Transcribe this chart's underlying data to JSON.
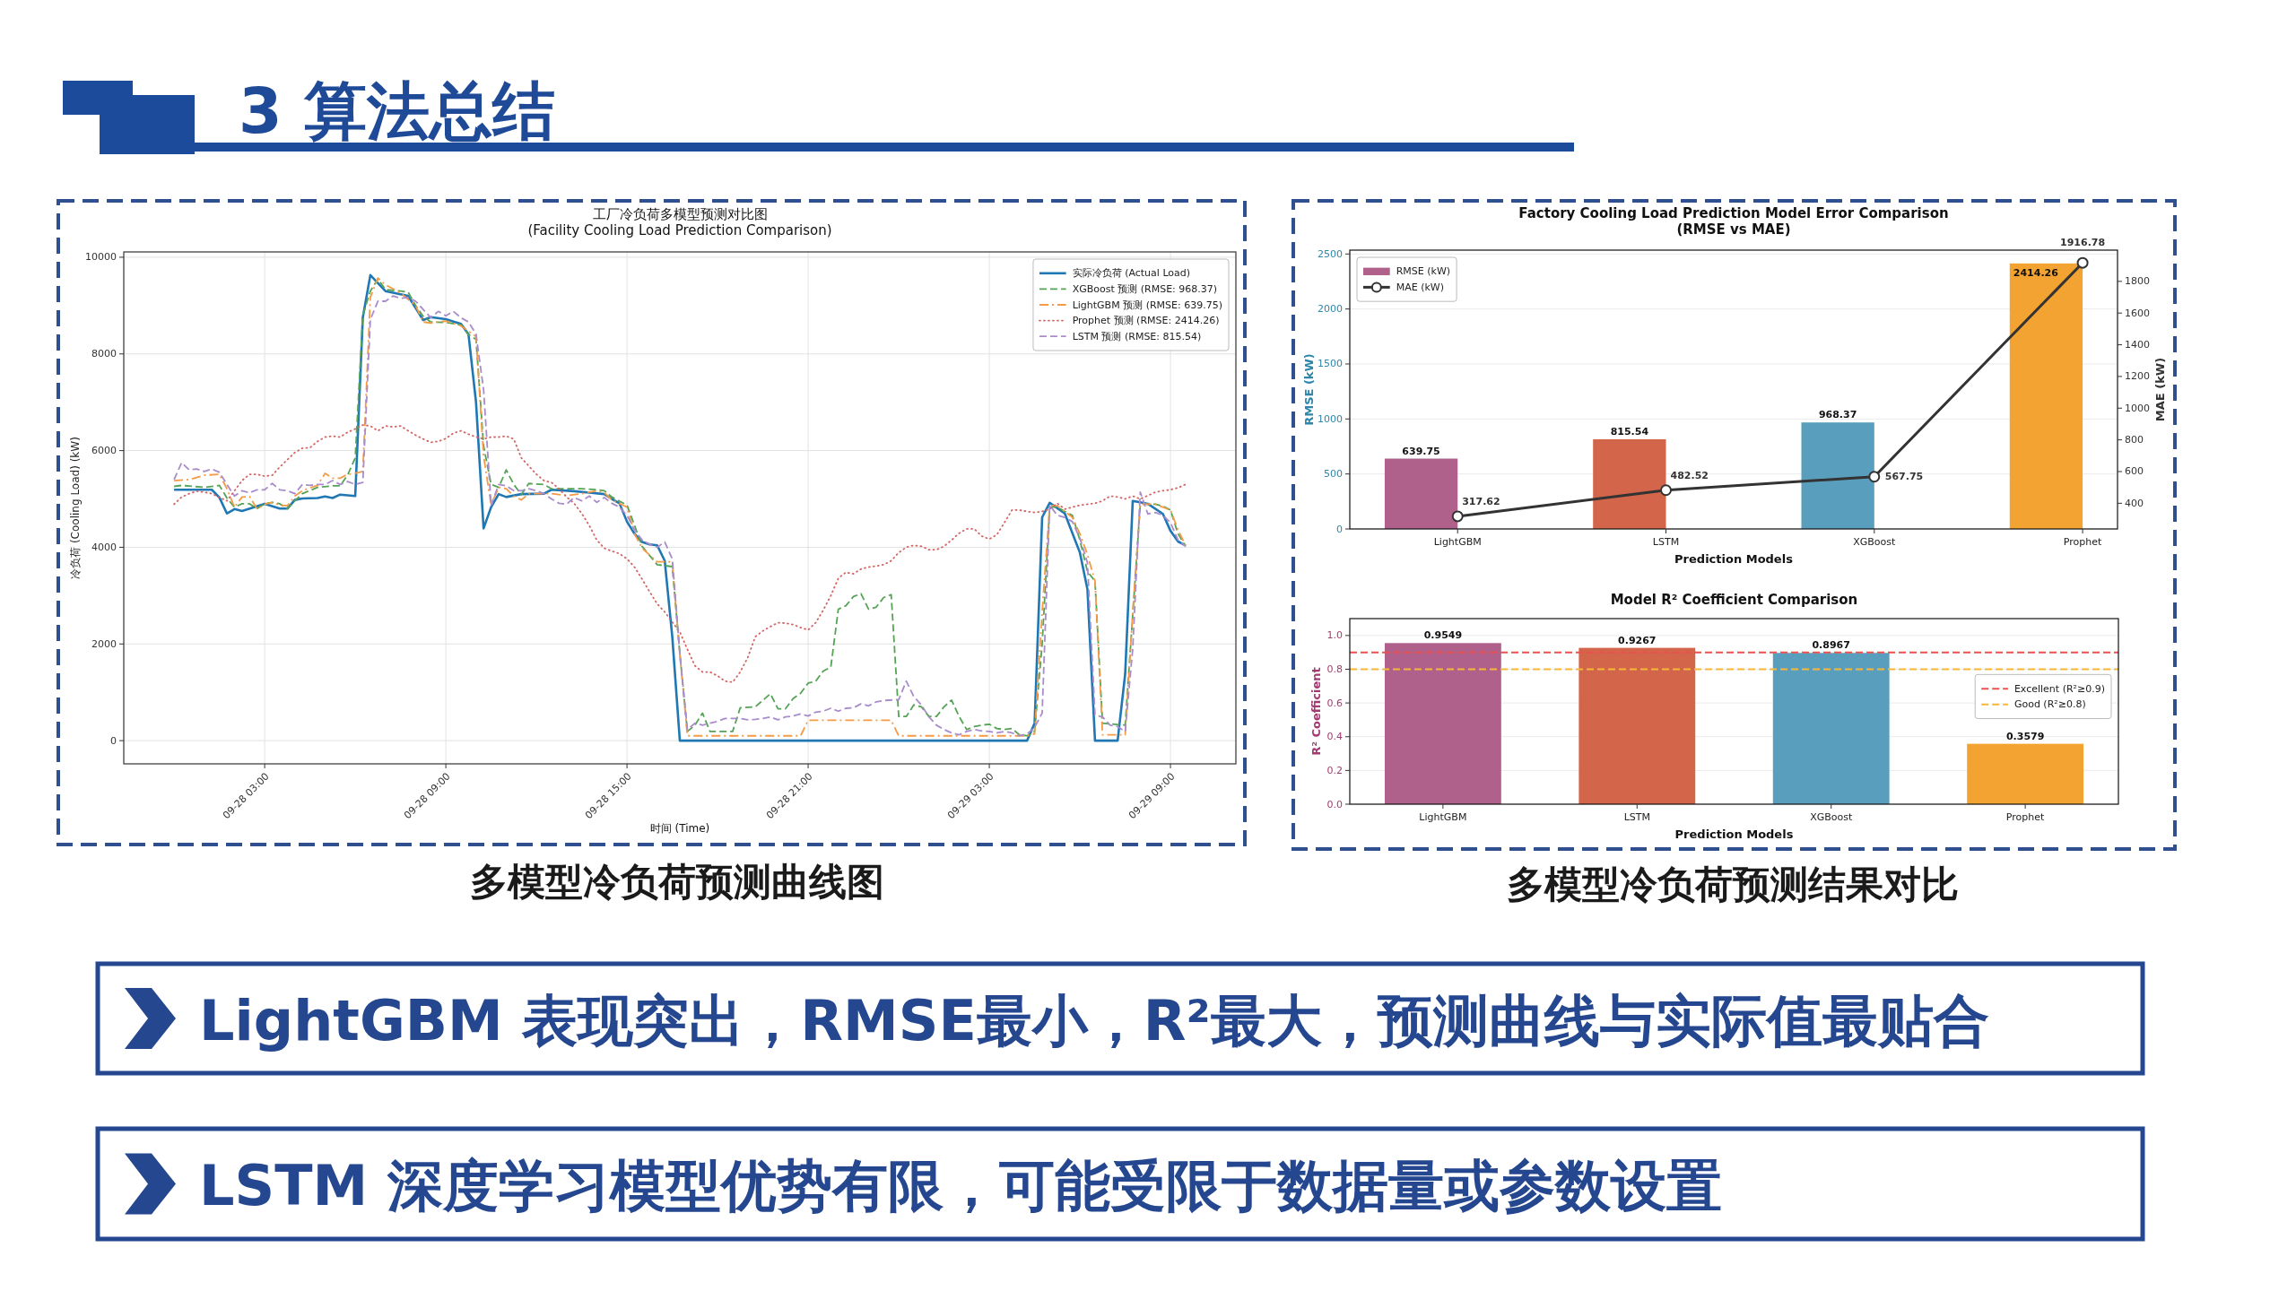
{
  "chart_data": [
    {
      "type": "other",
      "title": "3 算法总结"
    },
    {
      "type": "line",
      "title": "工厂冷负荷多模型预测对比图",
      "subtitle": "(Facility Cooling Load Prediction Comparison)",
      "xlabel": "时间 (Time)",
      "ylabel": "冷负荷 (Cooling Load) (kW)",
      "xlim": [
        "--09-27T22:20",
        "--09-29T11:10"
      ],
      "xticks": [
        {
          "value": "--09-28T03:00",
          "label": "09-28 03:00"
        },
        {
          "value": "--09-28T09:00",
          "label": "09-28 09:00"
        },
        {
          "value": "--09-28T15:00",
          "label": "09-28 15:00"
        },
        {
          "value": "--09-28T21:00",
          "label": "09-28 21:00"
        },
        {
          "value": "--09-29T03:00",
          "label": "09-29 03:00"
        },
        {
          "value": "--09-29T09:00",
          "label": "09-29 09:00"
        }
      ],
      "ylim": [
        -480,
        10110
      ],
      "yticks": [
        0,
        2000,
        4000,
        6000,
        8000,
        10000
      ],
      "grid": true,
      "legend": "top right",
      "series": [
        {
          "name": "实际冷负荷 (Actual Load)",
          "color": "#1f77b4",
          "line_style": "solid",
          "x": [
            "--09-28T00:00",
            "--09-28T01:15",
            "--09-28T01:30",
            "--09-28T01:45",
            "--09-28T02:00",
            "--09-28T02:15",
            "--09-28T03:00",
            "--09-28T03:30",
            "--09-28T03:45",
            "--09-28T04:00",
            "--09-28T04:15",
            "--09-28T04:45",
            "--09-28T05:00",
            "--09-28T05:15",
            "--09-28T05:30",
            "--09-28T06:00",
            "--09-28T06:15",
            "--09-28T06:30",
            "--09-28T07:00",
            "--09-28T07:45",
            "--09-28T08:15",
            "--09-28T08:30",
            "--09-28T09:00",
            "--09-28T09:30",
            "--09-28T09:45",
            "--09-28T10:00",
            "--09-28T10:15",
            "--09-28T10:30",
            "--09-28T10:45",
            "--09-28T11:00",
            "--09-28T11:30",
            "--09-28T12:15",
            "--09-28T12:30",
            "--09-28T13:15",
            "--09-28T13:45",
            "--09-28T14:15",
            "--09-28T14:30",
            "--09-28T14:45",
            "--09-28T15:00",
            "--09-28T15:15",
            "--09-28T15:30",
            "--09-28T15:45",
            "--09-28T16:00",
            "--09-28T16:15",
            "--09-28T16:30",
            "--09-28T16:45",
            "--09-29T04:15",
            "--09-29T04:30",
            "--09-29T04:45",
            "--09-29T05:00",
            "--09-29T05:30",
            "--09-29T06:00",
            "--09-29T06:15",
            "--09-29T06:30",
            "--09-29T07:15",
            "--09-29T07:30",
            "--09-29T07:45",
            "--09-29T08:15",
            "--09-29T08:45",
            "--09-29T09:00",
            "--09-29T09:15",
            "--09-29T09:30"
          ],
          "values": [
            5190,
            5190,
            5030,
            4700,
            4790,
            4750,
            4900,
            4800,
            4800,
            4980,
            5010,
            5020,
            5050,
            5020,
            5090,
            5060,
            8750,
            9630,
            9300,
            9200,
            8700,
            8760,
            8720,
            8620,
            8410,
            7000,
            4390,
            4830,
            5100,
            5040,
            5100,
            5110,
            5190,
            5160,
            5130,
            5100,
            5000,
            4910,
            4530,
            4280,
            4110,
            4060,
            4040,
            3720,
            2150,
            0,
            0,
            360,
            4620,
            4920,
            4700,
            3890,
            3130,
            0,
            0,
            1380,
            4960,
            4900,
            4690,
            4340,
            4120,
            4040
          ]
        },
        {
          "name": "XGBoost 预测 (RMSE: 968.37)",
          "color": "#55a355",
          "line_style": "dashed",
          "x": [
            "--09-28T00:00",
            "--09-28T00:15",
            "--09-28T01:00",
            "--09-28T01:30",
            "--09-28T01:45",
            "--09-28T02:00",
            "--09-28T02:15",
            "--09-28T02:30",
            "--09-28T02:45",
            "--09-28T03:00",
            "--09-28T03:15",
            "--09-28T03:30",
            "--09-28T03:45",
            "--09-28T04:00",
            "--09-28T04:15",
            "--09-28T04:45",
            "--09-28T05:15",
            "--09-28T05:30",
            "--09-28T05:45",
            "--09-28T06:00",
            "--09-28T06:15",
            "--09-28T06:30",
            "--09-28T06:45",
            "--09-28T07:00",
            "--09-28T07:30",
            "--09-28T07:45",
            "--09-28T08:00",
            "--09-28T08:15",
            "--09-28T08:30",
            "--09-28T09:00",
            "--09-28T09:30",
            "--09-28T09:45",
            "--09-28T10:00",
            "--09-28T10:15",
            "--09-28T10:30",
            "--09-28T10:45",
            "--09-28T11:00",
            "--09-28T11:15",
            "--09-28T11:30",
            "--09-28T11:45",
            "--09-28T12:15",
            "--09-28T12:30",
            "--09-28T13:30",
            "--09-28T14:00",
            "--09-28T14:15",
            "--09-28T14:30",
            "--09-28T15:00",
            "--09-28T15:15",
            "--09-28T15:30",
            "--09-28T16:00",
            "--09-28T16:30",
            "--09-28T16:45",
            "--09-28T17:00",
            "--09-28T17:15",
            "--09-28T17:30",
            "--09-28T17:45",
            "--09-28T18:30",
            "--09-28T18:45",
            "--09-28T19:15",
            "--09-28T19:45",
            "--09-28T20:00",
            "--09-28T20:15",
            "--09-28T20:30",
            "--09-28T20:45",
            "--09-28T21:00",
            "--09-28T21:15",
            "--09-28T21:30",
            "--09-28T21:45",
            "--09-28T22:00",
            "--09-28T22:15",
            "--09-28T22:30",
            "--09-28T22:45",
            "--09-28T23:00",
            "--09-28T23:15",
            "--09-28T23:30",
            "--09-28T23:45",
            "--09-29T00:00",
            "--09-29T00:15",
            "--09-29T00:30",
            "--09-29T00:45",
            "--09-29T01:00",
            "--09-29T01:15",
            "--09-29T01:30",
            "--09-29T01:45",
            "--09-29T02:00",
            "--09-29T02:15",
            "--09-29T02:30",
            "--09-29T02:45",
            "--09-29T03:00",
            "--09-29T03:15",
            "--09-29T03:30",
            "--09-29T03:45",
            "--09-29T04:00",
            "--09-29T04:15",
            "--09-29T04:30",
            "--09-29T04:45",
            "--09-29T05:00",
            "--09-29T05:15",
            "--09-29T05:30",
            "--09-29T05:45",
            "--09-29T06:00",
            "--09-29T06:15",
            "--09-29T06:30",
            "--09-29T06:45",
            "--09-29T07:30",
            "--09-29T07:45",
            "--09-29T08:00",
            "--09-29T08:30",
            "--09-29T08:45",
            "--09-29T09:00",
            "--09-29T09:15",
            "--09-29T09:30"
          ],
          "values": [
            5260,
            5280,
            5240,
            5280,
            5020,
            4830,
            4900,
            4900,
            4800,
            4900,
            4930,
            4900,
            4800,
            4960,
            5110,
            5240,
            5270,
            5270,
            5500,
            5850,
            8800,
            9300,
            9550,
            9330,
            9300,
            9280,
            9000,
            8780,
            8660,
            8650,
            8600,
            8400,
            8300,
            6100,
            5300,
            5240,
            5600,
            5300,
            5090,
            5320,
            5300,
            5210,
            5210,
            5190,
            5170,
            5040,
            4870,
            4450,
            4020,
            3640,
            3600,
            1800,
            190,
            320,
            570,
            190,
            190,
            680,
            700,
            970,
            660,
            660,
            870,
            980,
            1190,
            1230,
            1440,
            1520,
            2720,
            2790,
            2980,
            3040,
            2720,
            2760,
            2960,
            3020,
            500,
            500,
            740,
            700,
            500,
            500,
            700,
            840,
            500,
            230,
            290,
            320,
            340,
            250,
            230,
            250,
            120,
            100,
            190,
            2000,
            4830,
            4830,
            4740,
            4660,
            4150,
            3500,
            3300,
            360,
            320,
            2600,
            4890,
            4890,
            4850,
            4770,
            4280,
            4020
          ]
        },
        {
          "name": "LightGBM 预测 (RMSE: 639.75)",
          "color": "#f59a45",
          "line_style": "dashdot",
          "x": [
            "--09-28T00:00",
            "--09-28T00:30",
            "--09-28T01:00",
            "--09-28T01:30",
            "--09-28T01:45",
            "--09-28T02:00",
            "--09-28T02:15",
            "--09-28T02:30",
            "--09-28T02:45",
            "--09-28T03:00",
            "--09-28T03:15",
            "--09-28T03:30",
            "--09-28T03:45",
            "--09-28T04:00",
            "--09-28T04:15",
            "--09-28T04:30",
            "--09-28T04:45",
            "--09-28T05:00",
            "--09-28T05:15",
            "--09-28T05:30",
            "--09-28T05:45",
            "--09-28T06:00",
            "--09-28T06:15",
            "--09-28T06:30",
            "--09-28T06:45",
            "--09-28T07:00",
            "--09-28T07:30",
            "--09-28T08:00",
            "--09-28T08:15",
            "--09-28T08:30",
            "--09-28T09:00",
            "--09-28T09:30",
            "--09-28T09:45",
            "--09-28T10:00",
            "--09-28T10:15",
            "--09-28T10:30",
            "--09-28T10:45",
            "--09-28T11:00",
            "--09-28T11:15",
            "--09-28T11:30",
            "--09-28T11:45",
            "--09-28T12:30",
            "--09-28T13:00",
            "--09-28T13:30",
            "--09-28T14:00",
            "--09-28T14:15",
            "--09-28T14:30",
            "--09-28T15:00",
            "--09-28T15:15",
            "--09-28T15:30",
            "--09-28T16:00",
            "--09-28T16:30",
            "--09-28T16:45",
            "--09-28T17:00",
            "--09-28T20:45",
            "--09-28T21:00",
            "--09-28T23:45",
            "--09-29T00:00",
            "--09-29T04:15",
            "--09-29T04:30",
            "--09-29T04:45",
            "--09-29T05:00",
            "--09-29T05:15",
            "--09-29T05:30",
            "--09-29T05:45",
            "--09-29T06:00",
            "--09-29T06:15",
            "--09-29T06:30",
            "--09-29T06:45",
            "--09-29T07:30",
            "--09-29T07:45",
            "--09-29T08:00",
            "--09-29T08:30",
            "--09-29T08:45",
            "--09-29T09:00",
            "--09-29T09:15",
            "--09-29T09:30"
          ],
          "values": [
            5380,
            5400,
            5490,
            5510,
            5210,
            4830,
            5040,
            5050,
            4790,
            4890,
            4930,
            4870,
            4860,
            5060,
            5170,
            5230,
            5280,
            5530,
            5430,
            5430,
            5510,
            5530,
            5570,
            9170,
            9570,
            9430,
            9260,
            9000,
            8660,
            8640,
            8680,
            8580,
            8470,
            8360,
            5890,
            4870,
            5240,
            5210,
            5060,
            4980,
            5110,
            5110,
            5070,
            5110,
            5170,
            5130,
            4980,
            4830,
            4280,
            3980,
            3700,
            3700,
            1800,
            100,
            100,
            420,
            420,
            100,
            100,
            140,
            2660,
            4870,
            4860,
            4740,
            4620,
            4280,
            3850,
            3300,
            120,
            120,
            2650,
            4890,
            4890,
            4830,
            4770,
            4360,
            4040
          ]
        },
        {
          "name": "Prophet 预测 (RMSE: 2414.26)",
          "color": "#d46464",
          "line_style": "dotted",
          "x": [
            "--09-28T00:00",
            "--09-28T00:15",
            "--09-28T00:30",
            "--09-28T00:45",
            "--09-28T01:00",
            "--09-28T01:15",
            "--09-28T01:30",
            "--09-28T01:45",
            "--09-28T02:00",
            "--09-28T02:15",
            "--09-28T02:30",
            "--09-28T02:45",
            "--09-28T03:00",
            "--09-28T03:15",
            "--09-28T03:30",
            "--09-28T03:45",
            "--09-28T04:00",
            "--09-28T04:15",
            "--09-28T04:30",
            "--09-28T04:45",
            "--09-28T05:00",
            "--09-28T05:15",
            "--09-28T05:30",
            "--09-28T05:45",
            "--09-28T06:00",
            "--09-28T06:15",
            "--09-28T06:30",
            "--09-28T06:45",
            "--09-28T07:00",
            "--09-28T07:15",
            "--09-28T07:30",
            "--09-28T07:45",
            "--09-28T08:00",
            "--09-28T08:15",
            "--09-28T08:30",
            "--09-28T08:45",
            "--09-28T09:00",
            "--09-28T09:15",
            "--09-28T09:30",
            "--09-28T09:45",
            "--09-28T10:00",
            "--09-28T10:15",
            "--09-28T10:30",
            "--09-28T10:45",
            "--09-28T11:00",
            "--09-28T11:15",
            "--09-28T11:30",
            "--09-28T11:45",
            "--09-28T12:00",
            "--09-28T12:15",
            "--09-28T12:30",
            "--09-28T12:45",
            "--09-28T13:00",
            "--09-28T13:15",
            "--09-28T13:30",
            "--09-28T13:45",
            "--09-28T14:00",
            "--09-28T14:15",
            "--09-28T14:30",
            "--09-28T14:45",
            "--09-28T15:00",
            "--09-28T15:15",
            "--09-28T15:30",
            "--09-28T15:45",
            "--09-28T16:00",
            "--09-28T16:15",
            "--09-28T16:30",
            "--09-28T16:45",
            "--09-28T17:00",
            "--09-28T17:15",
            "--09-28T17:30",
            "--09-28T17:45",
            "--09-28T18:00",
            "--09-28T18:15",
            "--09-28T18:30",
            "--09-28T18:45",
            "--09-28T19:00",
            "--09-28T19:15",
            "--09-28T19:30",
            "--09-28T19:45",
            "--09-28T20:00",
            "--09-28T20:15",
            "--09-28T20:30",
            "--09-28T20:45",
            "--09-28T21:00",
            "--09-28T21:15",
            "--09-28T21:30",
            "--09-28T21:45",
            "--09-28T22:00",
            "--09-28T22:15",
            "--09-28T22:30",
            "--09-28T22:45",
            "--09-28T23:00",
            "--09-28T23:15",
            "--09-28T23:30",
            "--09-28T23:45",
            "--09-29T00:00",
            "--09-29T00:15",
            "--09-29T00:30",
            "--09-29T00:45",
            "--09-29T01:00",
            "--09-29T01:15",
            "--09-29T01:30",
            "--09-29T01:45",
            "--09-29T02:00",
            "--09-29T02:15",
            "--09-29T02:30",
            "--09-29T02:45",
            "--09-29T03:00",
            "--09-29T03:15",
            "--09-29T03:30",
            "--09-29T03:45",
            "--09-29T04:00",
            "--09-29T04:15",
            "--09-29T04:30",
            "--09-29T04:45",
            "--09-29T05:00",
            "--09-29T05:15",
            "--09-29T05:30",
            "--09-29T05:45",
            "--09-29T06:00",
            "--09-29T06:15",
            "--09-29T06:30",
            "--09-29T06:45",
            "--09-29T07:00",
            "--09-29T07:15",
            "--09-29T07:30",
            "--09-29T07:45",
            "--09-29T08:00",
            "--09-29T08:15",
            "--09-29T08:30",
            "--09-29T08:45",
            "--09-29T09:00",
            "--09-29T09:15",
            "--09-29T09:30"
          ],
          "values": [
            4890,
            5040,
            5110,
            5160,
            5140,
            5110,
            5030,
            4960,
            5170,
            5380,
            5510,
            5510,
            5470,
            5490,
            5660,
            5810,
            5960,
            6050,
            6060,
            6190,
            6280,
            6300,
            6280,
            6380,
            6450,
            6530,
            6510,
            6410,
            6510,
            6490,
            6510,
            6410,
            6320,
            6240,
            6170,
            6190,
            6250,
            6360,
            6410,
            6340,
            6280,
            6240,
            6280,
            6280,
            6300,
            6240,
            5850,
            5680,
            5510,
            5380,
            5340,
            5210,
            5040,
            4910,
            4700,
            4450,
            4150,
            3980,
            3920,
            3870,
            3760,
            3590,
            3340,
            3080,
            2830,
            2660,
            2450,
            2250,
            1890,
            1550,
            1420,
            1420,
            1340,
            1230,
            1210,
            1420,
            1720,
            2150,
            2270,
            2360,
            2440,
            2430,
            2400,
            2340,
            2290,
            2440,
            2700,
            3000,
            3360,
            3480,
            3450,
            3550,
            3590,
            3610,
            3640,
            3720,
            3890,
            4000,
            4040,
            4020,
            3950,
            3950,
            4020,
            4150,
            4290,
            4380,
            4380,
            4230,
            4170,
            4260,
            4510,
            4770,
            4770,
            4740,
            4720,
            4740,
            4790,
            4910,
            4790,
            4830,
            4870,
            4890,
            4910,
            4960,
            5060,
            5040,
            5000,
            5060,
            5000,
            5070,
            5140,
            5170,
            5190,
            5230,
            5300
          ]
        },
        {
          "name": "LSTM 预测 (RMSE: 815.54)",
          "color": "#a98ccb",
          "line_style": "dashed",
          "x": [
            "--09-28T00:00",
            "--09-28T00:15",
            "--09-28T00:30",
            "--09-28T00:45",
            "--09-28T01:00",
            "--09-28T01:15",
            "--09-28T01:30",
            "--09-28T01:45",
            "--09-28T02:00",
            "--09-28T02:15",
            "--09-28T02:30",
            "--09-28T02:45",
            "--09-28T03:00",
            "--09-28T03:15",
            "--09-28T03:30",
            "--09-28T03:45",
            "--09-28T04:00",
            "--09-28T04:15",
            "--09-28T04:30",
            "--09-28T04:45",
            "--09-28T05:00",
            "--09-28T05:15",
            "--09-28T05:30",
            "--09-28T05:45",
            "--09-28T06:00",
            "--09-28T06:15",
            "--09-28T06:30",
            "--09-28T06:45",
            "--09-28T07:00",
            "--09-28T07:15",
            "--09-28T07:30",
            "--09-28T07:45",
            "--09-28T08:00",
            "--09-28T08:15",
            "--09-28T08:30",
            "--09-28T08:45",
            "--09-28T09:00",
            "--09-28T09:15",
            "--09-28T09:30",
            "--09-28T09:45",
            "--09-28T10:00",
            "--09-28T10:15",
            "--09-28T10:30",
            "--09-28T10:45",
            "--09-28T11:00",
            "--09-28T11:15",
            "--09-28T11:30",
            "--09-28T11:45",
            "--09-28T12:00",
            "--09-28T12:15",
            "--09-28T12:30",
            "--09-28T12:45",
            "--09-28T13:00",
            "--09-28T13:15",
            "--09-28T13:30",
            "--09-28T13:45",
            "--09-28T14:00",
            "--09-28T14:15",
            "--09-28T14:30",
            "--09-28T14:45",
            "--09-28T15:00",
            "--09-28T15:15",
            "--09-28T15:30",
            "--09-28T15:45",
            "--09-28T16:00",
            "--09-28T16:15",
            "--09-28T16:30",
            "--09-28T16:45",
            "--09-28T17:00",
            "--09-28T17:15",
            "--09-28T17:30",
            "--09-28T17:45",
            "--09-28T18:00",
            "--09-28T18:15",
            "--09-28T18:45",
            "--09-28T19:00",
            "--09-28T19:15",
            "--09-28T19:30",
            "--09-28T19:45",
            "--09-28T20:00",
            "--09-28T20:15",
            "--09-28T20:30",
            "--09-28T20:45",
            "--09-28T21:00",
            "--09-28T21:15",
            "--09-28T21:30",
            "--09-28T21:45",
            "--09-28T22:00",
            "--09-28T22:15",
            "--09-28T22:30",
            "--09-28T22:45",
            "--09-28T23:00",
            "--09-28T23:15",
            "--09-28T23:30",
            "--09-29T00:00",
            "--09-29T00:15",
            "--09-29T00:30",
            "--09-29T00:45",
            "--09-29T01:00",
            "--09-29T01:15",
            "--09-29T01:30",
            "--09-29T01:45",
            "--09-29T02:00",
            "--09-29T02:15",
            "--09-29T02:30",
            "--09-29T02:45",
            "--09-29T03:00",
            "--09-29T03:15",
            "--09-29T03:30",
            "--09-29T03:45",
            "--09-29T04:00",
            "--09-29T04:15",
            "--09-29T04:30",
            "--09-29T04:45",
            "--09-29T05:00",
            "--09-29T05:15",
            "--09-29T05:30",
            "--09-29T05:45",
            "--09-29T06:00",
            "--09-29T06:15",
            "--09-29T06:30",
            "--09-29T06:45",
            "--09-29T07:00",
            "--09-29T07:15",
            "--09-29T07:30",
            "--09-29T07:45",
            "--09-29T08:00",
            "--09-29T08:15",
            "--09-29T08:30",
            "--09-29T08:45",
            "--09-29T09:00",
            "--09-29T09:15",
            "--09-29T09:30"
          ],
          "values": [
            5400,
            5750,
            5600,
            5620,
            5570,
            5620,
            5550,
            5300,
            5060,
            5170,
            5130,
            5190,
            5190,
            5320,
            5190,
            5170,
            5110,
            5300,
            5280,
            5300,
            5300,
            5380,
            5300,
            5360,
            5300,
            5340,
            8710,
            9090,
            9090,
            9200,
            9150,
            9170,
            9090,
            8920,
            8750,
            8880,
            8790,
            8880,
            8750,
            8660,
            8410,
            7260,
            4870,
            5300,
            5270,
            5170,
            5170,
            5210,
            5170,
            5110,
            5000,
            4910,
            4890,
            5030,
            4960,
            5060,
            4930,
            5030,
            4910,
            4830,
            4660,
            4360,
            4150,
            4060,
            4000,
            4110,
            3760,
            1800,
            230,
            360,
            320,
            360,
            400,
            460,
            460,
            430,
            440,
            460,
            490,
            430,
            490,
            510,
            550,
            510,
            590,
            610,
            670,
            610,
            670,
            680,
            760,
            720,
            800,
            830,
            850,
            1230,
            910,
            740,
            490,
            320,
            230,
            160,
            120,
            190,
            230,
            200,
            190,
            160,
            190,
            160,
            100,
            140,
            270,
            570,
            4870,
            4660,
            4620,
            4530,
            4190,
            3680,
            530,
            490,
            320,
            290,
            190,
            1900,
            5140,
            4690,
            4720,
            4660,
            4510,
            4150,
            4020
          ]
        }
      ],
      "annotations": [
        "多模型冷负荷预测曲线图"
      ]
    },
    {
      "type": "bar",
      "title": "Factory Cooling Load Prediction Model Error Comparison",
      "subtitle": "(RMSE vs MAE)",
      "xlabel": "Prediction Models",
      "ylabel": "RMSE (kW)",
      "y2label": "MAE (kW)",
      "categories": [
        "LightGBM",
        "LSTM",
        "XGBoost",
        "Prophet"
      ],
      "series": [
        {
          "name": "RMSE (kW)",
          "type": "bar",
          "colors": [
            "#b0618b",
            "#d2654a",
            "#5a9ebd",
            "#f2a331"
          ],
          "values": [
            639.75,
            815.54,
            968.37,
            2414.26
          ]
        },
        {
          "name": "MAE (kW)",
          "type": "line",
          "axis": "y2",
          "color": "#333333",
          "marker": "circle",
          "values": [
            317.62,
            482.52,
            567.75,
            1916.78
          ]
        }
      ],
      "ylim": [
        0,
        2535
      ],
      "yticks": [
        0,
        500,
        1000,
        1500,
        2000,
        2500
      ],
      "y2lim": [
        238,
        1997
      ],
      "y2ticks": [
        400,
        600,
        800,
        1000,
        1200,
        1400,
        1600,
        1800
      ],
      "grid": "y",
      "legend": "top left",
      "data_labels": true
    },
    {
      "type": "bar",
      "title": "Model R² Coefficient Comparison",
      "xlabel": "Prediction Models",
      "ylabel": "R² Coefficient",
      "categories": [
        "LightGBM",
        "LSTM",
        "XGBoost",
        "Prophet"
      ],
      "values": [
        0.9549,
        0.9267,
        0.8967,
        0.3579
      ],
      "colors": [
        "#b0618b",
        "#d2654a",
        "#5a9ebd",
        "#f2a331"
      ],
      "ylim": [
        0,
        1.1
      ],
      "yticks": [
        {
          "value": 0,
          "label": "0.0"
        },
        0.2,
        0.4,
        0.6,
        0.8,
        {
          "value": 1,
          "label": "1.0"
        }
      ],
      "grid": "y",
      "legend": "right",
      "data_labels": true,
      "ref_lines": [
        {
          "axis": "y",
          "value": 0.9,
          "label": "Excellent (R²≥0.9)",
          "color": "#e8524f",
          "line_style": "dashed"
        },
        {
          "axis": "y",
          "value": 0.8,
          "label": "Good (R²≥0.8)",
          "color": "#f5b73b",
          "line_style": "dashed"
        }
      ],
      "annotations": [
        "多模型冷负荷预测结果对比"
      ]
    },
    {
      "type": "other",
      "annotations": [
        "LightGBM 表现突出，RMSE最小，R²最大，预测曲线与实际值最贴合",
        "LSTM 深度学习模型优势有限，可能受限于数据量或参数设置"
      ]
    }
  ]
}
